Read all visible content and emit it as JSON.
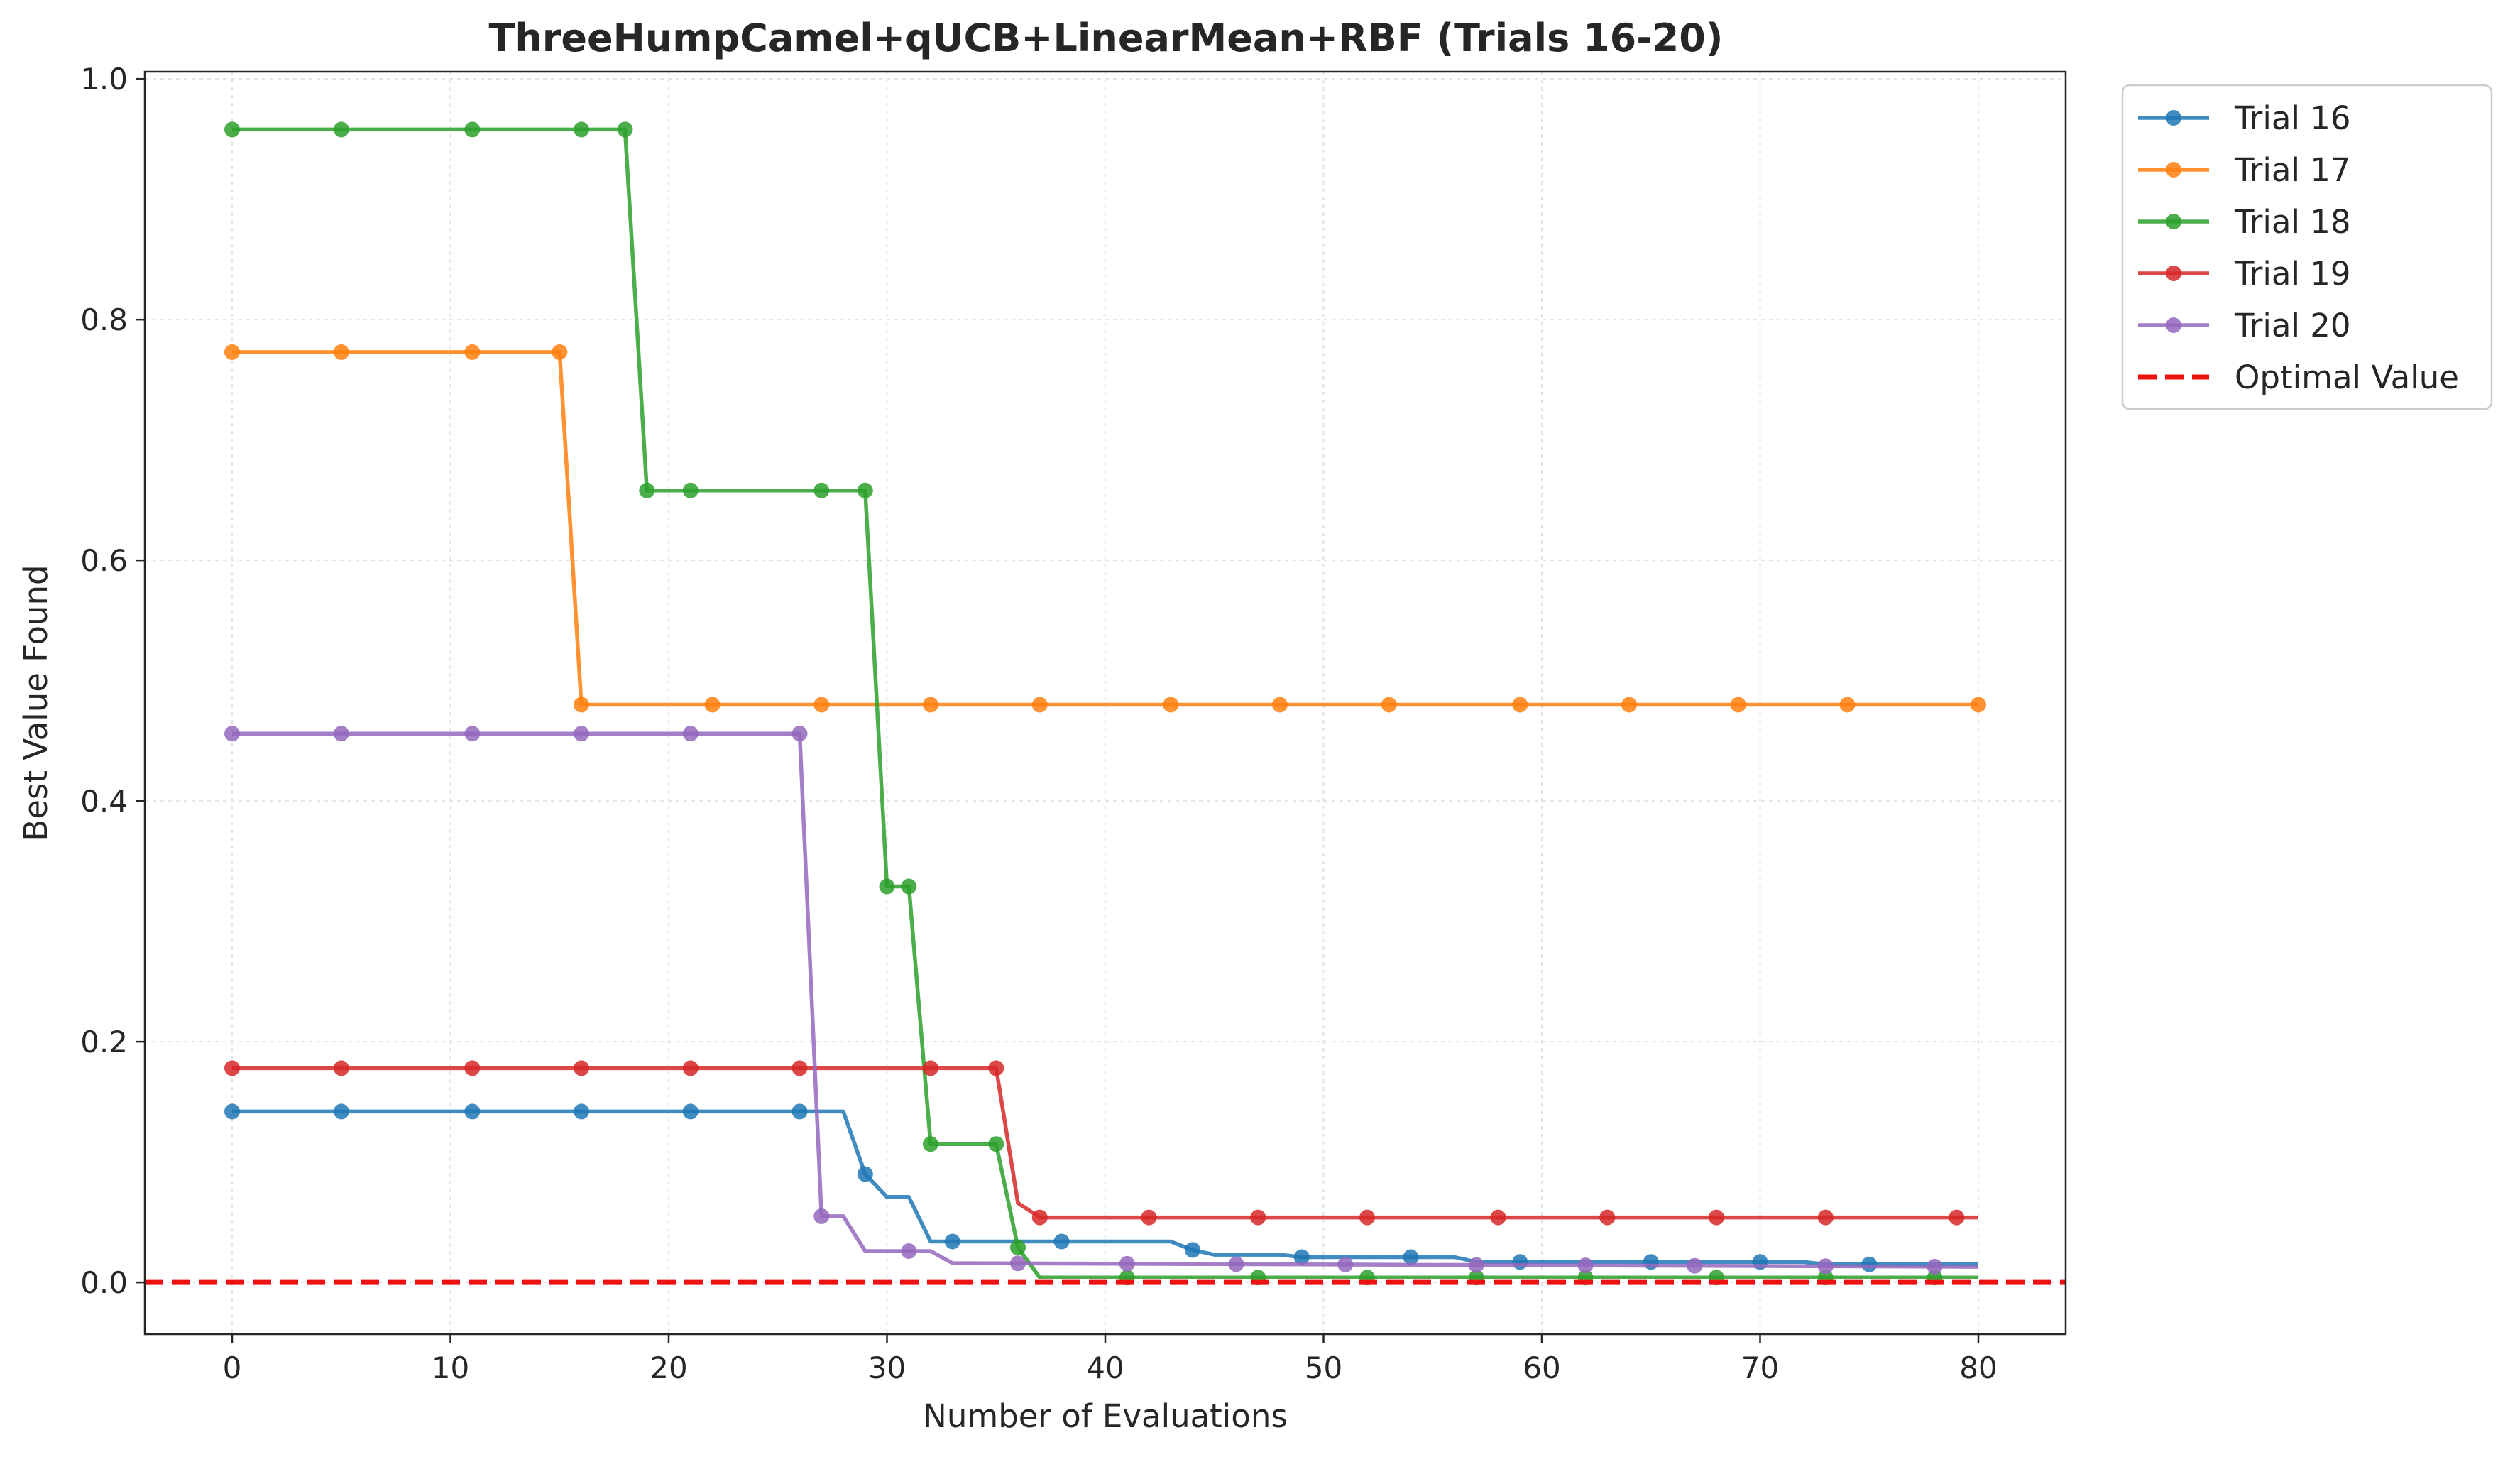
{
  "chart_data": {
    "type": "line",
    "title": "ThreeHumpCamel+qUCB+LinearMean+RBF (Trials 16-20)",
    "xlabel": "Number of Evaluations",
    "ylabel": "Best Value Found",
    "xlim": [
      -4,
      84
    ],
    "ylim": [
      -0.043,
      1.006
    ],
    "xticks": [
      0,
      10,
      20,
      30,
      40,
      50,
      60,
      70,
      80
    ],
    "yticks": [
      0.0,
      0.2,
      0.4,
      0.6,
      0.8,
      1.0
    ],
    "xtick_labels": [
      "0",
      "10",
      "20",
      "30",
      "40",
      "50",
      "60",
      "70",
      "80"
    ],
    "ytick_labels": [
      "0.0",
      "0.2",
      "0.4",
      "0.6",
      "0.8",
      "1.0"
    ],
    "grid": true,
    "legend_position": "outside top-right",
    "reference_line": {
      "name": "Optimal Value",
      "y": 0.0,
      "color": "#ee1111",
      "style": "dashed"
    },
    "series": [
      {
        "name": "Trial 16",
        "color": "#1f77b4",
        "points": [
          [
            0,
            0.142
          ],
          [
            28,
            0.142
          ],
          [
            29,
            0.09
          ],
          [
            30,
            0.071
          ],
          [
            31,
            0.071
          ],
          [
            32,
            0.034
          ],
          [
            43,
            0.034
          ],
          [
            44,
            0.027
          ],
          [
            45,
            0.023
          ],
          [
            48,
            0.023
          ],
          [
            49,
            0.021
          ],
          [
            56,
            0.021
          ],
          [
            57,
            0.017
          ],
          [
            72,
            0.017
          ],
          [
            73,
            0.015
          ],
          [
            80,
            0.015
          ]
        ],
        "marker_x": [
          0,
          5,
          11,
          16,
          21,
          26,
          29,
          33,
          38,
          44,
          49,
          54,
          59,
          65,
          70,
          75
        ]
      },
      {
        "name": "Trial 17",
        "color": "#ff7f0e",
        "points": [
          [
            0,
            0.773
          ],
          [
            15,
            0.773
          ],
          [
            16,
            0.48
          ],
          [
            80,
            0.48
          ]
        ],
        "marker_x": [
          0,
          5,
          11,
          15,
          16,
          22,
          27,
          32,
          37,
          43,
          48,
          53,
          59,
          64,
          69,
          74,
          80
        ]
      },
      {
        "name": "Trial 18",
        "color": "#2ca02c",
        "points": [
          [
            0,
            0.958
          ],
          [
            18,
            0.958
          ],
          [
            19,
            0.658
          ],
          [
            29,
            0.658
          ],
          [
            30,
            0.329
          ],
          [
            31,
            0.329
          ],
          [
            32,
            0.115
          ],
          [
            35,
            0.115
          ],
          [
            36,
            0.029
          ],
          [
            37,
            0.004
          ],
          [
            80,
            0.004
          ]
        ],
        "marker_x": [
          0,
          5,
          11,
          16,
          18,
          19,
          21,
          27,
          29,
          30,
          31,
          32,
          35,
          36,
          41,
          47,
          52,
          57,
          62,
          68,
          73,
          78
        ]
      },
      {
        "name": "Trial 19",
        "color": "#d62728",
        "points": [
          [
            0,
            0.178
          ],
          [
            35,
            0.178
          ],
          [
            36,
            0.066
          ],
          [
            37,
            0.054
          ],
          [
            80,
            0.054
          ]
        ],
        "marker_x": [
          0,
          5,
          11,
          16,
          21,
          26,
          32,
          35,
          37,
          42,
          47,
          52,
          58,
          63,
          68,
          73,
          79
        ]
      },
      {
        "name": "Trial 20",
        "color": "#9467bd",
        "points": [
          [
            0,
            0.456
          ],
          [
            26,
            0.456
          ],
          [
            27,
            0.055
          ],
          [
            28,
            0.055
          ],
          [
            29,
            0.026
          ],
          [
            31,
            0.026
          ],
          [
            32,
            0.026
          ],
          [
            33,
            0.016
          ],
          [
            80,
            0.013
          ]
        ],
        "marker_x": [
          0,
          5,
          11,
          16,
          21,
          26,
          27,
          31,
          36,
          41,
          46,
          51,
          57,
          62,
          67,
          73,
          78
        ]
      }
    ]
  }
}
